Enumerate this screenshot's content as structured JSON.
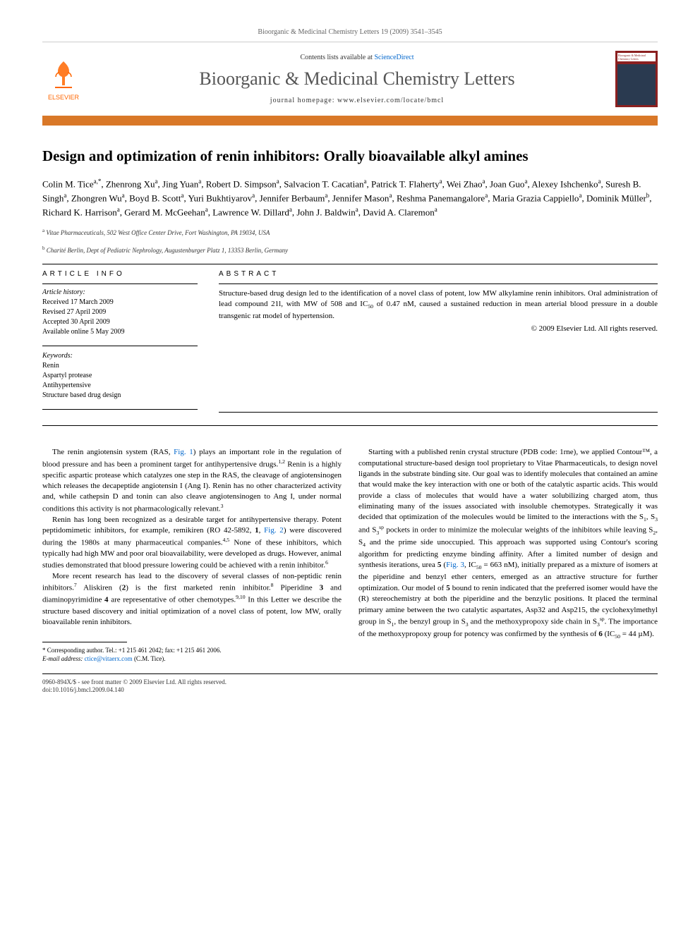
{
  "running_header": "Bioorganic & Medicinal Chemistry Letters 19 (2009) 3541–3545",
  "header": {
    "contents_prefix": "Contents lists available at ",
    "contents_link": "ScienceDirect",
    "journal_name": "Bioorganic & Medicinal Chemistry Letters",
    "homepage_prefix": "journal homepage: ",
    "homepage_url": "www.elsevier.com/locate/bmcl",
    "publisher": "ELSEVIER"
  },
  "title": "Design and optimization of renin inhibitors: Orally bioavailable alkyl amines",
  "authors_html": "Colin M. Tice<sup>a,*</sup>, Zhenrong Xu<sup>a</sup>, Jing Yuan<sup>a</sup>, Robert D. Simpson<sup>a</sup>, Salvacion T. Cacatian<sup>a</sup>, Patrick T. Flaherty<sup>a</sup>, Wei Zhao<sup>a</sup>, Joan Guo<sup>a</sup>, Alexey Ishchenko<sup>a</sup>, Suresh B. Singh<sup>a</sup>, Zhongren Wu<sup>a</sup>, Boyd B. Scott<sup>a</sup>, Yuri Bukhtiyarov<sup>a</sup>, Jennifer Berbaum<sup>a</sup>, Jennifer Mason<sup>a</sup>, Reshma Panemangalore<sup>a</sup>, Maria Grazia Cappiello<sup>a</sup>, Dominik Müller<sup>b</sup>, Richard K. Harrison<sup>a</sup>, Gerard M. McGeehan<sup>a</sup>, Lawrence W. Dillard<sup>a</sup>, John J. Baldwin<sup>a</sup>, David A. Claremon<sup>a</sup>",
  "affiliations": [
    {
      "sup": "a",
      "text": "Vitae Pharmaceuticals, 502 West Office Center Drive, Fort Washington, PA 19034, USA"
    },
    {
      "sup": "b",
      "text": "Charité Berlin, Dept of Pediatric Nephrology, Augustenburger Platz 1, 13353 Berlin, Germany"
    }
  ],
  "article_info_heading": "ARTICLE INFO",
  "history_label": "Article history:",
  "history": [
    "Received 17 March 2009",
    "Revised 27 April 2009",
    "Accepted 30 April 2009",
    "Available online 5 May 2009"
  ],
  "keywords_label": "Keywords:",
  "keywords": [
    "Renin",
    "Aspartyl protease",
    "Antihypertensive",
    "Structure based drug design"
  ],
  "abstract_heading": "ABSTRACT",
  "abstract_text": "Structure-based drug design led to the identification of a novel class of potent, low MW alkylamine renin inhibitors. Oral administration of lead compound 21l, with MW of 508 and IC50 of 0.47 nM, caused a sustained reduction in mean arterial blood pressure in a double transgenic rat model of hypertension.",
  "copyright": "© 2009 Elsevier Ltd. All rights reserved.",
  "body": {
    "left": [
      "The renin angiotensin system (RAS, <span class=\"fig-link\">Fig. 1</span>) plays an important role in the regulation of blood pressure and has been a prominent target for antihypertensive drugs.<sup>1,2</sup> Renin is a highly specific aspartic protease which catalyzes one step in the RAS, the cleavage of angiotensinogen which releases the decapeptide angiotensin I (Ang I). Renin has no other characterized activity and, while cathepsin D and tonin can also cleave angiotensinogen to Ang I, under normal conditions this activity is not pharmacologically relevant.<sup>3</sup>",
      "Renin has long been recognized as a desirable target for antihypertensive therapy. Potent peptidomimetic inhibitors, for example, remikiren (RO 42-5892, <b>1</b>, <span class=\"fig-link\">Fig. 2</span>) were discovered during the 1980s at many pharmaceutical companies.<sup>4,5</sup> None of these inhibitors, which typically had high MW and poor oral bioavailability, were developed as drugs. However, animal studies demonstrated that blood pressure lowering could be achieved with a renin inhibitor.<sup>6</sup>",
      "More recent research has lead to the discovery of several classes of non-peptidic renin inhibitors.<sup>7</sup> Aliskiren (<b>2</b>) is the first marketed renin inhibitor.<sup>8</sup> Piperidine <b>3</b> and diaminopyrimidine <b>4</b> are representative of other chemotypes.<sup>9,10</sup> In this Letter we describe the structure based discovery and initial optimization of a novel class of potent, low MW, orally bioavailable renin inhibitors."
    ],
    "right": [
      "Starting with a published renin crystal structure (PDB code: 1rne), we applied Contour™, a computational structure-based design tool proprietary to Vitae Pharmaceuticals, to design novel ligands in the substrate binding site. Our goal was to identify molecules that contained an amine that would make the key interaction with one or both of the catalytic aspartic acids. This would provide a class of molecules that would have a water solubilizing charged atom, thus eliminating many of the issues associated with insoluble chemotypes. Strategically it was decided that optimization of the molecules would be limited to the interactions with the S<sub>1</sub>, S<sub>3</sub> and S<sub>3</sub><sup>sp</sup> pockets in order to minimize the molecular weights of the inhibitors while leaving S<sub>2</sub>, S<sub>4</sub> and the prime side unoccupied. This approach was supported using Contour's scoring algorithm for predicting enzyme binding affinity. After a limited number of design and synthesis iterations, urea <b>5</b> (<span class=\"fig-link\">Fig. 3</span>, IC<sub>50</sub> = 663 nM), initially prepared as a mixture of isomers at the piperidine and benzyl ether centers, emerged as an attractive structure for further optimization. Our model of <b>5</b> bound to renin indicated that the preferred isomer would have the (R) stereochemistry at both the piperidine and the benzylic positions. It placed the terminal primary amine between the two catalytic aspartates, Asp32 and Asp215, the cyclohexylmethyl group in S<sub>1</sub>, the benzyl group in S<sub>3</sub> and the methoxypropoxy side chain in S<sub>3</sub><sup>sp</sup>. The importance of the methoxypropoxy group for potency was confirmed by the synthesis of <b>6</b> (IC<sub>50</sub> = 44 µM)."
    ]
  },
  "footnote": {
    "line1": "* Corresponding author. Tel.: +1 215 461 2042; fax: +1 215 461 2006.",
    "line2_prefix": "E-mail address: ",
    "email": "ctice@vitaerx.com",
    "line2_suffix": " (C.M. Tice)."
  },
  "bottom": {
    "line1": "0960-894X/$ - see front matter © 2009 Elsevier Ltd. All rights reserved.",
    "line2": "doi:10.1016/j.bmcl.2009.04.140"
  },
  "colors": {
    "orange_bar": "#d97828",
    "elsevier_orange": "#ff6600",
    "link_blue": "#0066cc",
    "cover_red": "#8b2020",
    "cover_img": "#2a3a50"
  }
}
